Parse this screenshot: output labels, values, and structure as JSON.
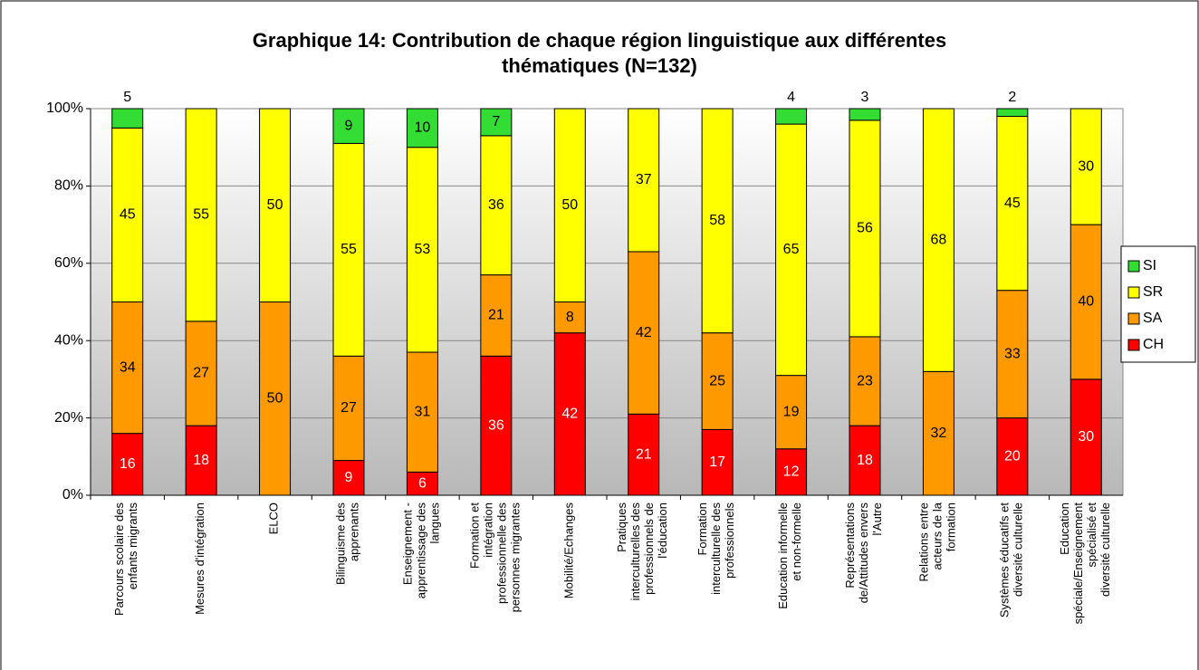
{
  "chart_data": {
    "type": "stacked_bar_100",
    "title": "Graphique 14: Contribution de chaque région linguistique aux différentes thématiques (N=132)",
    "categories": [
      "Parcours scolaire des enfants migrants",
      "Mesures d'intégration",
      "ELCO",
      "Bilinguisme des apprenants",
      "Enseignement - apprentissage des langues",
      "Formation et intégration professionnelle des personnes migrantes",
      "Mobilité/Echanges",
      "Pratiques interculturelles des professionnels de l'éducation",
      "Formation interculturelle des professionnels",
      "Education informelle et non-formelle",
      "Représentations de/Attitudes envers l'Autre",
      "Relations entre acteurs de la formation",
      "Systèmes éducatifs et diversité culturelle",
      "Education spéciale/Enseignement spécialisé et diversité culturelle"
    ],
    "series": [
      {
        "name": "CH",
        "color": "#ff0000",
        "values": [
          16,
          18,
          0,
          9,
          6,
          36,
          42,
          21,
          17,
          12,
          18,
          0,
          20,
          30
        ]
      },
      {
        "name": "SA",
        "color": "#ff9900",
        "values": [
          34,
          27,
          50,
          27,
          31,
          21,
          8,
          42,
          25,
          19,
          23,
          32,
          33,
          40
        ]
      },
      {
        "name": "SR",
        "color": "#ffff00",
        "values": [
          45,
          55,
          50,
          55,
          53,
          36,
          50,
          37,
          58,
          65,
          56,
          68,
          45,
          30
        ]
      },
      {
        "name": "SI",
        "color": "#33dd33",
        "values": [
          5,
          0,
          0,
          9,
          10,
          7,
          0,
          0,
          0,
          4,
          3,
          0,
          2,
          0
        ]
      }
    ],
    "ylim": [
      0,
      100
    ],
    "yticks": [
      {
        "value": 0,
        "label": "0%"
      },
      {
        "value": 20,
        "label": "20%"
      },
      {
        "value": 40,
        "label": "40%"
      },
      {
        "value": 60,
        "label": "60%"
      },
      {
        "value": 80,
        "label": "80%"
      },
      {
        "value": 100,
        "label": "100%"
      }
    ],
    "grid": true,
    "legend": "right"
  }
}
